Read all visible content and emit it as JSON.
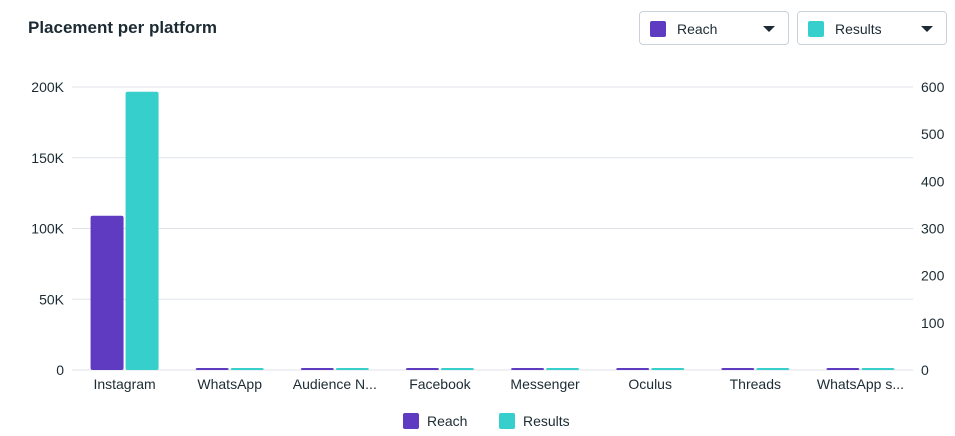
{
  "header": {
    "title": "Placement per platform"
  },
  "selectors": {
    "left_metric": "Reach",
    "right_metric": "Results"
  },
  "legend": {
    "reach": "Reach",
    "results": "Results"
  },
  "colors": {
    "reach": "#5e3bc1",
    "results": "#36cfcc",
    "grid": "#dfe3e8"
  },
  "chart_data": {
    "type": "bar",
    "title": "Placement per platform",
    "categories": [
      "Instagram",
      "WhatsApp",
      "Audience N...",
      "Facebook",
      "Messenger",
      "Oculus",
      "Threads",
      "WhatsApp s..."
    ],
    "series": [
      {
        "name": "Reach",
        "axis": "left",
        "values": [
          109000,
          300,
          300,
          300,
          300,
          300,
          300,
          300
        ]
      },
      {
        "name": "Results",
        "axis": "right",
        "values": [
          590,
          1,
          1,
          1,
          1,
          1,
          1,
          1
        ]
      }
    ],
    "y_left": {
      "ylim": [
        0,
        200000
      ],
      "ticks": [
        0,
        50000,
        100000,
        150000,
        200000
      ],
      "tick_labels": [
        "0",
        "50K",
        "100K",
        "150K",
        "200K"
      ]
    },
    "y_right": {
      "ylim": [
        0,
        600
      ],
      "ticks": [
        0,
        100,
        200,
        300,
        400,
        500,
        600
      ],
      "tick_labels": [
        "0",
        "100",
        "200",
        "300",
        "400",
        "500",
        "600"
      ]
    },
    "grid": true,
    "legend_position": "bottom"
  }
}
